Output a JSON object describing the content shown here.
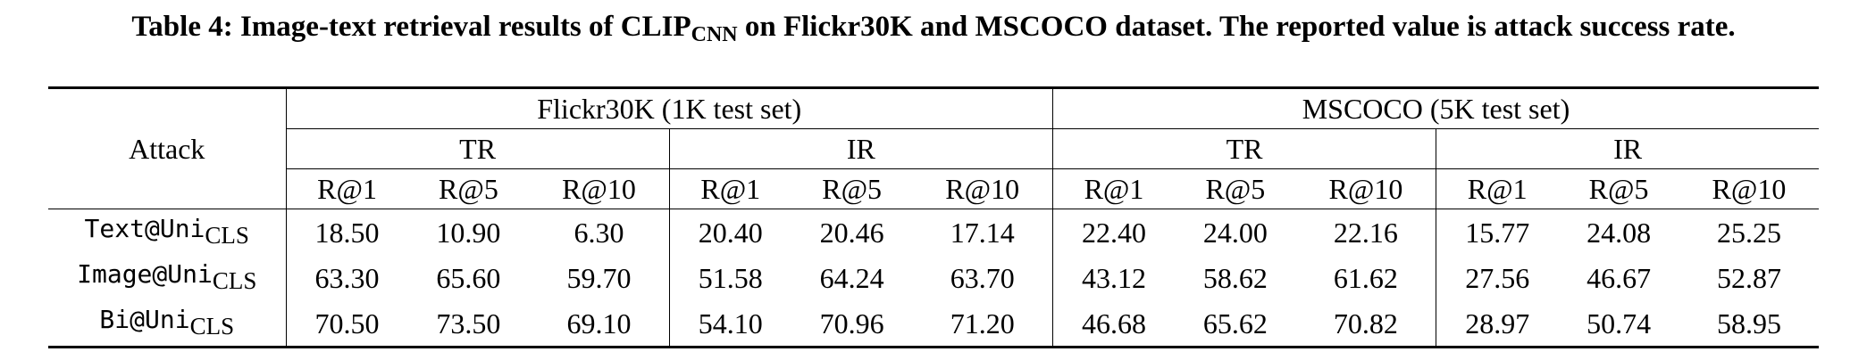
{
  "caption": {
    "prefix": "Table 4: Image-text retrieval results of CLIP",
    "sub": "CNN",
    "suffix": " on Flickr30K and MSCOCO dataset. The reported value is attack success rate."
  },
  "header": {
    "attack": "Attack",
    "datasets": [
      "Flickr30K (1K test set)",
      "MSCOCO (5K test set)"
    ],
    "tasks": [
      "TR",
      "IR",
      "TR",
      "IR"
    ],
    "metrics": [
      "R@1",
      "R@5",
      "R@10",
      "R@1",
      "R@5",
      "R@10",
      "R@1",
      "R@5",
      "R@10",
      "R@1",
      "R@5",
      "R@10"
    ]
  },
  "rows": [
    {
      "name": "Text@Uni",
      "sub": "CLS",
      "values": [
        "18.50",
        "10.90",
        "6.30",
        "20.40",
        "20.46",
        "17.14",
        "22.40",
        "24.00",
        "22.16",
        "15.77",
        "24.08",
        "25.25"
      ]
    },
    {
      "name": "Image@Uni",
      "sub": "CLS",
      "values": [
        "63.30",
        "65.60",
        "59.70",
        "51.58",
        "64.24",
        "63.70",
        "43.12",
        "58.62",
        "61.62",
        "27.56",
        "46.67",
        "52.87"
      ]
    },
    {
      "name": "Bi@Uni",
      "sub": "CLS",
      "values": [
        "70.50",
        "73.50",
        "69.10",
        "54.10",
        "70.96",
        "71.20",
        "46.68",
        "65.62",
        "70.82",
        "28.97",
        "50.74",
        "58.95"
      ]
    }
  ]
}
